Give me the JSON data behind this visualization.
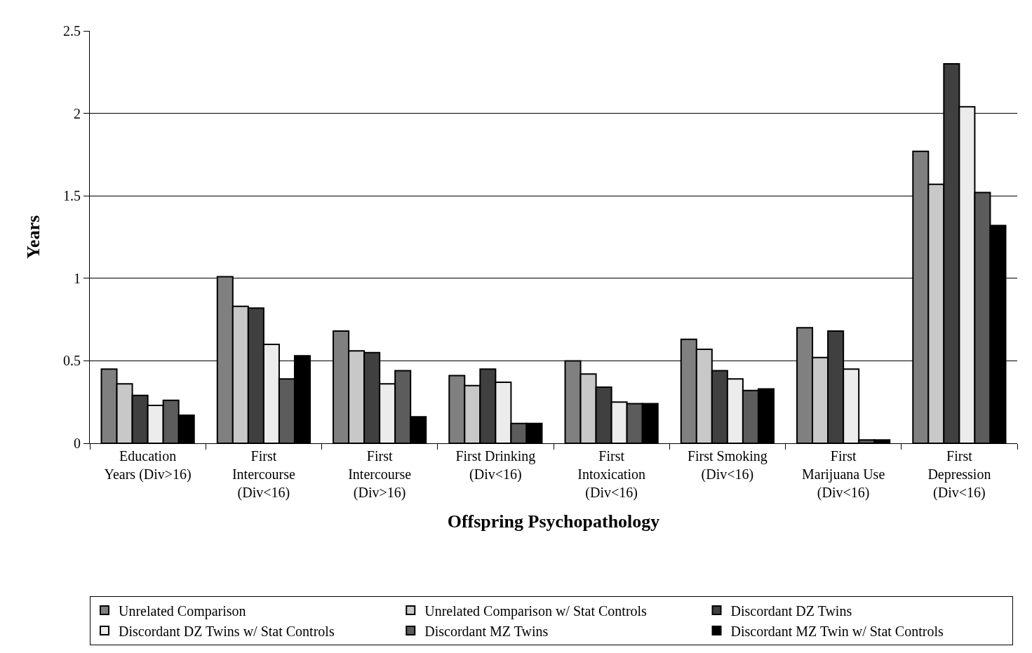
{
  "chart_data": {
    "type": "bar",
    "xlabel": "Offspring Psychopathology",
    "ylabel": "Years",
    "categories": [
      "Education Years (Div>16)",
      "First Intercourse (Div<16)",
      "First Intercourse (Div>16)",
      "First Drinking (Div<16)",
      "First Intoxication (Div<16)",
      "First Smoking (Div<16)",
      "First Marijuana Use (Div<16)",
      "First Depression (Div<16)"
    ],
    "series": [
      {
        "name": "Unrelated Comparison",
        "color": "#808080",
        "values": [
          0.45,
          1.01,
          0.68,
          0.41,
          0.5,
          0.63,
          0.7,
          1.77
        ]
      },
      {
        "name": "Unrelated Comparison w/ Stat Controls",
        "color": "#c8c8c8",
        "values": [
          0.36,
          0.83,
          0.56,
          0.35,
          0.42,
          0.57,
          0.52,
          1.57
        ]
      },
      {
        "name": "Discordant DZ Twins",
        "color": "#404040",
        "values": [
          0.29,
          0.82,
          0.55,
          0.45,
          0.34,
          0.44,
          0.68,
          2.3
        ]
      },
      {
        "name": "Discordant DZ Twins w/ Stat Controls",
        "color": "#ececec",
        "values": [
          0.23,
          0.6,
          0.36,
          0.37,
          0.25,
          0.39,
          0.45,
          2.04
        ]
      },
      {
        "name": "Discordant MZ Twins",
        "color": "#5c5c5c",
        "values": [
          0.26,
          0.39,
          0.44,
          0.12,
          0.24,
          0.32,
          0.02,
          1.52
        ]
      },
      {
        "name": "Discordant MZ Twin w/ Stat Controls",
        "color": "#000000",
        "values": [
          0.17,
          0.53,
          0.16,
          0.12,
          0.24,
          0.33,
          0.02,
          1.32
        ]
      }
    ],
    "ylim": [
      0,
      2.5
    ],
    "yticks": [
      0,
      0.5,
      1,
      1.5,
      2,
      2.5
    ],
    "grid": "y",
    "legend": "bottom"
  }
}
